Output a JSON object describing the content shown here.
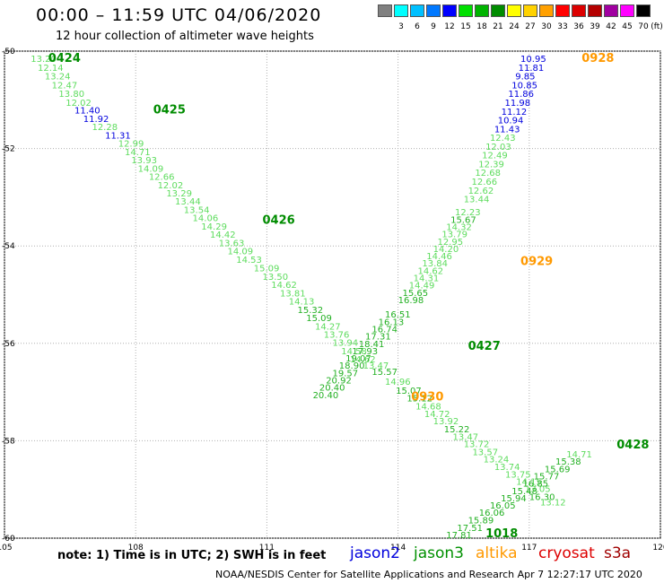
{
  "header": {
    "title": "00:00 – 11:59 UTC 04/06/2020",
    "subtitle": "12 hour collection of altimeter wave heights"
  },
  "legend": {
    "unit": "(ft)",
    "items": [
      {
        "label": "",
        "color": "#808080"
      },
      {
        "label": "3",
        "color": "#00ffff"
      },
      {
        "label": "6",
        "color": "#00c0ff"
      },
      {
        "label": "9",
        "color": "#0078ff"
      },
      {
        "label": "12",
        "color": "#0000ff"
      },
      {
        "label": "15",
        "color": "#00e000"
      },
      {
        "label": "18",
        "color": "#00b400"
      },
      {
        "label": "21",
        "color": "#008c00"
      },
      {
        "label": "24",
        "color": "#ffff00"
      },
      {
        "label": "27",
        "color": "#ffd200"
      },
      {
        "label": "30",
        "color": "#ffa000"
      },
      {
        "label": "33",
        "color": "#ff0000"
      },
      {
        "label": "36",
        "color": "#dc0000"
      },
      {
        "label": "39",
        "color": "#b40000"
      },
      {
        "label": "42",
        "color": "#a000a0"
      },
      {
        "label": "45",
        "color": "#ff00ff"
      },
      {
        "label": "70",
        "color": "#000000"
      }
    ]
  },
  "footer": {
    "note": "note:  1) Time is in UTC;  2) SWH is in feet",
    "satellites": [
      {
        "name": "jason2",
        "color": "#0000dd"
      },
      {
        "name": "jason3",
        "color": "#009000"
      },
      {
        "name": "altika",
        "color": "#ff9900"
      },
      {
        "name": "cryosat",
        "color": "#dd0000"
      },
      {
        "name": "s3a",
        "color": "#a00000"
      }
    ],
    "credit": "NOAA/NESDIS Center for Satellite Applications and Research    Apr  7 12:27:17 UTC 2020"
  },
  "chart_data": {
    "type": "scatter",
    "xlim": [
      105,
      120
    ],
    "ylim": [
      -60,
      -50
    ],
    "xticks": [
      "105",
      "108",
      "111",
      "114",
      "117",
      "120"
    ],
    "yticks": [
      "-50",
      "-52",
      "-54",
      "-56",
      "-58",
      "-60"
    ],
    "grid": true,
    "colors": {
      "blue": "#0000dd",
      "light": "#5edc5e",
      "med": "#22b022",
      "dark": "#008c00",
      "orange": "#ff9900"
    },
    "time_labels": [
      {
        "text": "0424",
        "x": 106.0,
        "y": -50.13,
        "color": "dark"
      },
      {
        "text": "0425",
        "x": 108.4,
        "y": -51.19,
        "color": "dark"
      },
      {
        "text": "0426",
        "x": 110.9,
        "y": -53.45,
        "color": "dark"
      },
      {
        "text": "0427",
        "x": 115.6,
        "y": -56.04,
        "color": "dark"
      },
      {
        "text": "0428",
        "x": 119.0,
        "y": -58.07,
        "color": "dark"
      },
      {
        "text": "0928",
        "x": 118.2,
        "y": -50.13,
        "color": "orange"
      },
      {
        "text": "0929",
        "x": 116.8,
        "y": -54.3,
        "color": "orange"
      },
      {
        "text": "0930",
        "x": 114.3,
        "y": -57.08,
        "color": "orange"
      },
      {
        "text": "1018",
        "x": 116.0,
        "y": -59.89,
        "color": "dark"
      }
    ],
    "series": [
      {
        "name": "0424",
        "points": [
          {
            "x": 105.6,
            "y": -50.15,
            "v": "13.20",
            "c": "light"
          },
          {
            "x": 105.76,
            "y": -50.33,
            "v": "12.14",
            "c": "light"
          },
          {
            "x": 105.92,
            "y": -50.51,
            "v": "13.24",
            "c": "light"
          },
          {
            "x": 106.08,
            "y": -50.69,
            "v": "12.47",
            "c": "light"
          },
          {
            "x": 106.24,
            "y": -50.87,
            "v": "13.80",
            "c": "light"
          },
          {
            "x": 106.4,
            "y": -51.05,
            "v": "12.02",
            "c": "light"
          },
          {
            "x": 106.6,
            "y": -51.21,
            "v": "11.40",
            "c": "blue"
          },
          {
            "x": 106.8,
            "y": -51.38,
            "v": "11.92",
            "c": "blue"
          },
          {
            "x": 107.0,
            "y": -51.55,
            "v": "12.28",
            "c": "light"
          },
          {
            "x": 107.3,
            "y": -51.72,
            "v": "11.31",
            "c": "blue"
          }
        ]
      },
      {
        "name": "0425",
        "points": [
          {
            "x": 107.6,
            "y": -51.89,
            "v": "12.99",
            "c": "light"
          },
          {
            "x": 107.75,
            "y": -52.06,
            "v": "14.71",
            "c": "light"
          },
          {
            "x": 107.9,
            "y": -52.23,
            "v": "13.93",
            "c": "light"
          },
          {
            "x": 108.05,
            "y": -52.4,
            "v": "14.09",
            "c": "light"
          },
          {
            "x": 108.3,
            "y": -52.57,
            "v": "12.66",
            "c": "light"
          },
          {
            "x": 108.5,
            "y": -52.74,
            "v": "12.02",
            "c": "light"
          },
          {
            "x": 108.7,
            "y": -52.91,
            "v": "13.29",
            "c": "light"
          },
          {
            "x": 108.9,
            "y": -53.08,
            "v": "13.44",
            "c": "light"
          },
          {
            "x": 109.1,
            "y": -53.25,
            "v": "13.54",
            "c": "light"
          },
          {
            "x": 109.3,
            "y": -53.42,
            "v": "14.06",
            "c": "light"
          },
          {
            "x": 109.5,
            "y": -53.59,
            "v": "14.29",
            "c": "light"
          },
          {
            "x": 109.7,
            "y": -53.76,
            "v": "14.42",
            "c": "light"
          },
          {
            "x": 109.9,
            "y": -53.93,
            "v": "13.63",
            "c": "light"
          },
          {
            "x": 110.1,
            "y": -54.1,
            "v": "14.09",
            "c": "light"
          },
          {
            "x": 110.3,
            "y": -54.27,
            "v": "14.53",
            "c": "light"
          }
        ]
      },
      {
        "name": "0426",
        "points": [
          {
            "x": 110.7,
            "y": -54.45,
            "v": "15.09",
            "c": "light"
          },
          {
            "x": 110.9,
            "y": -54.62,
            "v": "13.50",
            "c": "light"
          },
          {
            "x": 111.1,
            "y": -54.79,
            "v": "14.62",
            "c": "light"
          },
          {
            "x": 111.3,
            "y": -54.96,
            "v": "13.81",
            "c": "light"
          },
          {
            "x": 111.5,
            "y": -55.13,
            "v": "14.13",
            "c": "light"
          },
          {
            "x": 111.7,
            "y": -55.3,
            "v": "15.32",
            "c": "med"
          },
          {
            "x": 111.9,
            "y": -55.47,
            "v": "15.09",
            "c": "med"
          },
          {
            "x": 112.1,
            "y": -55.64,
            "v": "14.27",
            "c": "light"
          },
          {
            "x": 112.3,
            "y": -55.81,
            "v": "13.76",
            "c": "light"
          },
          {
            "x": 112.5,
            "y": -55.98,
            "v": "13.94",
            "c": "light"
          },
          {
            "x": 112.7,
            "y": -56.15,
            "v": "14.58",
            "c": "light"
          },
          {
            "x": 112.9,
            "y": -56.32,
            "v": "14.62",
            "c": "light"
          },
          {
            "x": 113.2,
            "y": -56.45,
            "v": "13.47",
            "c": "light"
          },
          {
            "x": 113.4,
            "y": -56.57,
            "v": "15.57",
            "c": "med"
          }
        ]
      },
      {
        "name": "0427",
        "points": [
          {
            "x": 113.7,
            "y": -56.78,
            "v": "14.96",
            "c": "light"
          },
          {
            "x": 113.95,
            "y": -56.96,
            "v": "15.07",
            "c": "med"
          },
          {
            "x": 114.2,
            "y": -57.12,
            "v": "15.12",
            "c": "med"
          },
          {
            "x": 114.4,
            "y": -57.28,
            "v": "14.68",
            "c": "light"
          },
          {
            "x": 114.6,
            "y": -57.44,
            "v": "14.72",
            "c": "light"
          },
          {
            "x": 114.8,
            "y": -57.59,
            "v": "13.92",
            "c": "light"
          },
          {
            "x": 115.05,
            "y": -57.75,
            "v": "15.22",
            "c": "med"
          },
          {
            "x": 115.25,
            "y": -57.91,
            "v": "13.47",
            "c": "light"
          },
          {
            "x": 115.5,
            "y": -58.06,
            "v": "13.72",
            "c": "light"
          },
          {
            "x": 115.7,
            "y": -58.22,
            "v": "13.57",
            "c": "light"
          },
          {
            "x": 115.95,
            "y": -58.37,
            "v": "13.24",
            "c": "light"
          },
          {
            "x": 116.2,
            "y": -58.53,
            "v": "13.74",
            "c": "light"
          },
          {
            "x": 116.45,
            "y": -58.68,
            "v": "13.75",
            "c": "light"
          },
          {
            "x": 116.7,
            "y": -58.83,
            "v": "14.15",
            "c": "light"
          },
          {
            "x": 116.9,
            "y": -58.98,
            "v": "13.05",
            "c": "light"
          },
          {
            "x": 117.0,
            "y": -59.14,
            "v": "16.30",
            "c": "med"
          },
          {
            "x": 117.25,
            "y": -59.25,
            "v": "13.12",
            "c": "light"
          }
        ]
      },
      {
        "name": "0928",
        "points": [
          {
            "x": 116.8,
            "y": -50.15,
            "v": "10.95",
            "c": "blue"
          },
          {
            "x": 116.75,
            "y": -50.33,
            "v": "11.81",
            "c": "blue"
          },
          {
            "x": 116.68,
            "y": -50.51,
            "v": "9.85",
            "c": "blue"
          },
          {
            "x": 116.6,
            "y": -50.69,
            "v": "10.85",
            "c": "blue"
          },
          {
            "x": 116.52,
            "y": -50.87,
            "v": "11.86",
            "c": "blue"
          },
          {
            "x": 116.44,
            "y": -51.05,
            "v": "11.98",
            "c": "blue"
          },
          {
            "x": 116.36,
            "y": -51.23,
            "v": "11.12",
            "c": "blue"
          },
          {
            "x": 116.28,
            "y": -51.41,
            "v": "10.94",
            "c": "blue"
          },
          {
            "x": 116.2,
            "y": -51.59,
            "v": "11.43",
            "c": "blue"
          },
          {
            "x": 116.1,
            "y": -51.77,
            "v": "12.43",
            "c": "light"
          },
          {
            "x": 116.0,
            "y": -51.95,
            "v": "12.03",
            "c": "light"
          },
          {
            "x": 115.92,
            "y": -52.13,
            "v": "12.49",
            "c": "light"
          },
          {
            "x": 115.84,
            "y": -52.31,
            "v": "12.39",
            "c": "light"
          },
          {
            "x": 115.76,
            "y": -52.49,
            "v": "12.68",
            "c": "light"
          },
          {
            "x": 115.68,
            "y": -52.67,
            "v": "12.66",
            "c": "light"
          },
          {
            "x": 115.6,
            "y": -52.85,
            "v": "12.62",
            "c": "light"
          },
          {
            "x": 115.5,
            "y": -53.03,
            "v": "13.44",
            "c": "light"
          }
        ]
      },
      {
        "name": "0929",
        "points": [
          {
            "x": 115.3,
            "y": -53.3,
            "v": "12.23",
            "c": "light"
          },
          {
            "x": 115.2,
            "y": -53.45,
            "v": "15.67",
            "c": "med"
          },
          {
            "x": 115.1,
            "y": -53.6,
            "v": "14.32",
            "c": "light"
          },
          {
            "x": 115.0,
            "y": -53.75,
            "v": "13.79",
            "c": "light"
          },
          {
            "x": 114.9,
            "y": -53.9,
            "v": "12.95",
            "c": "light"
          },
          {
            "x": 114.8,
            "y": -54.05,
            "v": "14.20",
            "c": "light"
          },
          {
            "x": 114.65,
            "y": -54.2,
            "v": "14.46",
            "c": "light"
          },
          {
            "x": 114.55,
            "y": -54.35,
            "v": "13.84",
            "c": "light"
          },
          {
            "x": 114.45,
            "y": -54.5,
            "v": "14.62",
            "c": "light"
          },
          {
            "x": 114.35,
            "y": -54.65,
            "v": "14.31",
            "c": "light"
          },
          {
            "x": 114.25,
            "y": -54.8,
            "v": "14.49",
            "c": "light"
          },
          {
            "x": 114.1,
            "y": -54.95,
            "v": "15.65",
            "c": "med"
          },
          {
            "x": 114.0,
            "y": -55.1,
            "v": "16.98",
            "c": "med"
          }
        ]
      },
      {
        "name": "0930",
        "points": [
          {
            "x": 113.7,
            "y": -55.4,
            "v": "16.51",
            "c": "med"
          },
          {
            "x": 113.55,
            "y": -55.55,
            "v": "16.13",
            "c": "med"
          },
          {
            "x": 113.4,
            "y": -55.7,
            "v": "16.74",
            "c": "med"
          },
          {
            "x": 113.25,
            "y": -55.85,
            "v": "17.31",
            "c": "med"
          },
          {
            "x": 113.1,
            "y": -56.0,
            "v": "18.41",
            "c": "med"
          },
          {
            "x": 112.95,
            "y": -56.15,
            "v": "17.93",
            "c": "med"
          },
          {
            "x": 112.8,
            "y": -56.3,
            "v": "19.07",
            "c": "med"
          },
          {
            "x": 112.65,
            "y": -56.45,
            "v": "18.90",
            "c": "med"
          },
          {
            "x": 112.5,
            "y": -56.6,
            "v": "19.57",
            "c": "med"
          },
          {
            "x": 112.35,
            "y": -56.75,
            "v": "20.92",
            "c": "med"
          },
          {
            "x": 112.2,
            "y": -56.9,
            "v": "20.40",
            "c": "med"
          },
          {
            "x": 112.05,
            "y": -57.05,
            "v": "20.40",
            "c": "med"
          }
        ]
      },
      {
        "name": "1018",
        "points": [
          {
            "x": 115.1,
            "y": -59.93,
            "v": "17.81",
            "c": "med"
          },
          {
            "x": 115.35,
            "y": -59.78,
            "v": "17.51",
            "c": "med"
          },
          {
            "x": 115.6,
            "y": -59.62,
            "v": "15.89",
            "c": "med"
          },
          {
            "x": 115.85,
            "y": -59.47,
            "v": "16.06",
            "c": "med"
          },
          {
            "x": 116.1,
            "y": -59.32,
            "v": "16.05",
            "c": "med"
          },
          {
            "x": 116.35,
            "y": -59.17,
            "v": "15.94",
            "c": "med"
          },
          {
            "x": 116.6,
            "y": -59.02,
            "v": "15.48",
            "c": "med"
          },
          {
            "x": 116.85,
            "y": -58.87,
            "v": "16.85",
            "c": "med"
          },
          {
            "x": 117.1,
            "y": -58.72,
            "v": "15.77",
            "c": "med"
          },
          {
            "x": 117.35,
            "y": -58.57,
            "v": "15.69",
            "c": "med"
          },
          {
            "x": 117.6,
            "y": -58.42,
            "v": "15.38",
            "c": "med"
          },
          {
            "x": 117.85,
            "y": -58.27,
            "v": "14.71",
            "c": "light"
          }
        ]
      }
    ]
  }
}
